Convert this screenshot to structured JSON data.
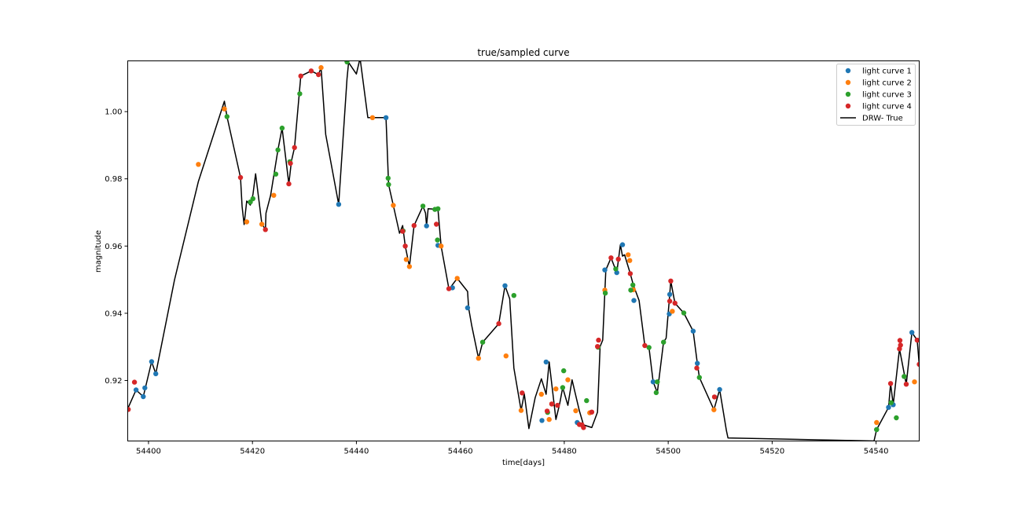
{
  "chart_data": {
    "type": "scatter",
    "title": "true/sampled curve",
    "xlabel": "time[days]",
    "ylabel": "magnitude",
    "xlim": [
      54396,
      54548.3
    ],
    "ylim": [
      0.902,
      1.0151
    ],
    "x_ticks": [
      54400,
      54420,
      54440,
      54460,
      54480,
      54500,
      54520,
      54540
    ],
    "y_ticks": [
      0.92,
      0.94,
      0.96,
      0.98,
      1.0
    ],
    "y_tick_labels": [
      "0.92",
      "0.94",
      "0.96",
      "0.98",
      "1.00"
    ],
    "legend_position": "top-right",
    "series": [
      {
        "name": "light curve 1",
        "color": "#1f77b4",
        "x": [
          54397.6,
          54399,
          54399.3,
          54400.6,
          54401.4,
          54436.6,
          54445.7,
          54453.5,
          54455.7,
          54458.5,
          54461.4,
          54468.6,
          54475.7,
          54476.5,
          54482.5,
          54487.8,
          54490.1,
          54491.2,
          54493.4,
          54497.1,
          54500.2,
          54500.3,
          54504.8,
          54505.6,
          54509.9,
          54540.1,
          54542.4,
          54543.3,
          54546.9
        ],
        "y": [
          0.9172,
          0.9152,
          0.9178,
          0.9256,
          0.922,
          0.9724,
          0.9982,
          0.966,
          0.9602,
          0.9476,
          0.9416,
          0.9482,
          0.9081,
          0.9255,
          0.9075,
          0.9529,
          0.9521,
          0.9604,
          0.9438,
          0.9196,
          0.9398,
          0.9456,
          0.9347,
          0.9251,
          0.9173,
          0.9054,
          0.912,
          0.9128,
          0.9343
        ]
      },
      {
        "name": "light curve 2",
        "color": "#ff7f0e",
        "x": [
          54409.6,
          54414.6,
          54418.9,
          54421.8,
          54424.1,
          54433.2,
          54443.1,
          54447.1,
          54449.6,
          54450.2,
          54456.3,
          54459.4,
          54463.5,
          54468.8,
          54471.7,
          54475.6,
          54477.1,
          54477.6,
          54478.4,
          54480.7,
          54482.2,
          54484.9,
          54487.8,
          54492.3,
          54492.6,
          54493.3,
          54500.8,
          54508.8,
          54540.1,
          54547.4
        ],
        "y": [
          0.9843,
          1.0008,
          0.9672,
          0.9665,
          0.9751,
          1.0131,
          0.9982,
          0.9721,
          0.956,
          0.9539,
          0.96,
          0.9504,
          0.9266,
          0.9273,
          0.9111,
          0.9159,
          0.9084,
          0.913,
          0.9175,
          0.9202,
          0.911,
          0.9104,
          0.9469,
          0.9574,
          0.9557,
          0.947,
          0.9406,
          0.9113,
          0.9075,
          0.9196
        ]
      },
      {
        "name": "light curve 3",
        "color": "#2ca02c",
        "x": [
          54415.1,
          54419.6,
          54420.1,
          54424.5,
          54424.9,
          54425.7,
          54427.2,
          54429.1,
          54438.2,
          54446.1,
          54446.2,
          54449,
          54452.8,
          54455.1,
          54455.6,
          54455.7,
          54464.3,
          54470.3,
          54476.8,
          54479.7,
          54479.9,
          54484.3,
          54486.5,
          54487.9,
          54489.9,
          54492.8,
          54493.2,
          54496.3,
          54497.7,
          54497.9,
          54499.1,
          54503,
          54506,
          54540.1,
          54542.9,
          54543.9,
          54545.4
        ],
        "y": [
          0.9985,
          0.9731,
          0.9741,
          0.9814,
          0.9886,
          0.9951,
          0.9851,
          1.0053,
          1.0148,
          0.9802,
          0.9783,
          0.9645,
          0.9719,
          0.9709,
          0.9618,
          0.9711,
          0.9314,
          0.9453,
          0.9105,
          0.9179,
          0.9229,
          0.914,
          0.9299,
          0.946,
          0.9532,
          0.9469,
          0.9484,
          0.9298,
          0.9164,
          0.9196,
          0.9314,
          0.9401,
          0.9209,
          0.9054,
          0.9134,
          0.9089,
          0.9212
        ]
      },
      {
        "name": "light curve 4",
        "color": "#d62728",
        "x": [
          54396.1,
          54397.3,
          54417.7,
          54422.5,
          54427,
          54427.3,
          54428.1,
          54429.3,
          54431.3,
          54432.7,
          54448.9,
          54449.4,
          54451.1,
          54455.4,
          54457.8,
          54467.4,
          54471.9,
          54476.7,
          54477.6,
          54478.7,
          54482.9,
          54483.4,
          54483.7,
          54485.3,
          54486.4,
          54486.6,
          54489,
          54490.4,
          54492.7,
          54495.5,
          54500.3,
          54500.5,
          54501.3,
          54505.5,
          54508.9,
          54542.8,
          54544.5,
          54544.6,
          54544.7,
          54545.8,
          54547.9,
          54548.3
        ],
        "y": [
          0.9114,
          0.9195,
          0.9804,
          0.9649,
          0.9785,
          0.9846,
          0.9893,
          1.0106,
          1.0121,
          1.011,
          0.9644,
          0.96,
          0.9661,
          0.9665,
          0.9473,
          0.9369,
          0.9163,
          0.9109,
          0.913,
          0.9126,
          0.9069,
          0.9068,
          0.906,
          0.9106,
          0.9301,
          0.932,
          0.9565,
          0.9561,
          0.9518,
          0.9304,
          0.9436,
          0.9496,
          0.943,
          0.9237,
          0.9151,
          0.9191,
          0.9294,
          0.9319,
          0.9305,
          0.9189,
          0.932,
          0.9248
        ]
      },
      {
        "name": "DRW- True",
        "color": "#000000",
        "x": [
          54396,
          54397.6,
          54399,
          54400.6,
          54401.4,
          54405,
          54409.6,
          54414.6,
          54415.1,
          54417.7,
          54418,
          54418.4,
          54418.9,
          54419.6,
          54420.1,
          54420.6,
          54421.8,
          54422.5,
          54422.6,
          54423.5,
          54424.9,
          54425.7,
          54427,
          54427.5,
          54428.1,
          54429.3,
          54431.3,
          54432.7,
          54433.2,
          54434.1,
          54436.6,
          54438.2,
          54438.5,
          54440,
          54440.7,
          54442.2,
          54443.1,
          54445.7,
          54446.2,
          54447.1,
          54448.3,
          54448.9,
          54449.4,
          54450.2,
          54451.1,
          54452.8,
          54453.3,
          54453.5,
          54453.8,
          54455.7,
          54456.3,
          54457.8,
          54458,
          54459.4,
          54461.4,
          54461.6,
          54462.2,
          54463.5,
          54464.3,
          54467.4,
          54468.6,
          54469.5,
          54470.3,
          54471.7,
          54472.3,
          54473.2,
          54474.4,
          54475.6,
          54476.5,
          54477.1,
          54478.4,
          54479.1,
          54479.7,
          54480.7,
          54481.5,
          54482.9,
          54483.7,
          54485.3,
          54486.4,
          54486.9,
          54487.4,
          54488,
          54489,
          54490.1,
          54490.8,
          54491.2,
          54491.6,
          54492.7,
          54493.3,
          54494.4,
          54495.5,
          54496.3,
          54497.1,
          54497.9,
          54499.1,
          54499.6,
          54500.3,
          54500.5,
          54501.3,
          54503,
          54504.8,
          54505.6,
          54506,
          54508.8,
          54509.9,
          54511.2,
          54511.5,
          54539.6,
          54540.1,
          54542.4,
          54542.8,
          54543.3,
          54544.5,
          54545.8,
          54546.9,
          54547.9,
          54548.3
        ],
        "y": [
          0.9116,
          0.9172,
          0.9152,
          0.9256,
          0.922,
          0.9499,
          0.9792,
          1.0031,
          0.9985,
          0.9804,
          0.9718,
          0.9664,
          0.9734,
          0.9722,
          0.9753,
          0.9815,
          0.9667,
          0.9649,
          0.9698,
          0.9751,
          0.9886,
          0.9951,
          0.9785,
          0.9853,
          0.9893,
          1.0106,
          1.0121,
          1.011,
          1.0131,
          0.9932,
          0.9724,
          1.0098,
          1.0146,
          1.0112,
          1.0159,
          0.9982,
          0.9982,
          0.9982,
          0.9783,
          0.9721,
          0.9638,
          0.9661,
          0.96,
          0.9539,
          0.9661,
          0.9719,
          0.9698,
          0.966,
          0.9711,
          0.9709,
          0.96,
          0.9473,
          0.9475,
          0.9504,
          0.9465,
          0.9416,
          0.9363,
          0.9266,
          0.9314,
          0.9369,
          0.9482,
          0.9443,
          0.9237,
          0.9111,
          0.9161,
          0.9057,
          0.9149,
          0.9205,
          0.9159,
          0.9255,
          0.9084,
          0.913,
          0.9179,
          0.9126,
          0.9202,
          0.911,
          0.9068,
          0.906,
          0.9106,
          0.9301,
          0.932,
          0.9529,
          0.9565,
          0.9521,
          0.9604,
          0.957,
          0.9574,
          0.9518,
          0.9484,
          0.9438,
          0.9304,
          0.9298,
          0.9196,
          0.9164,
          0.9314,
          0.9326,
          0.9456,
          0.9496,
          0.943,
          0.9401,
          0.9347,
          0.9251,
          0.9209,
          0.9113,
          0.9173,
          0.9051,
          0.9029,
          0.902,
          0.9054,
          0.912,
          0.9191,
          0.9128,
          0.9294,
          0.9189,
          0.9343,
          0.932,
          0.9248
        ]
      }
    ]
  }
}
